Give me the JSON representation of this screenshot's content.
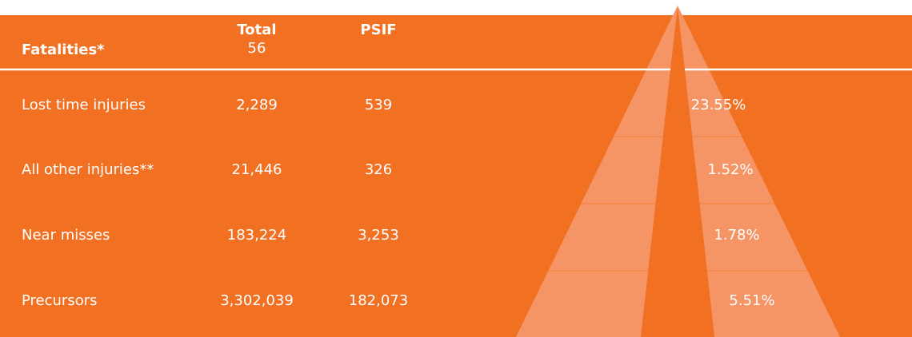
{
  "colors": {
    "background": "#f27022",
    "wedge": "#f59565",
    "divider": "#ffffff"
  },
  "header": {
    "label": "Fatalities*",
    "total_label": "Total",
    "total_value": "56",
    "psif_label": "PSIF"
  },
  "rows": [
    {
      "label": "Lost time injuries",
      "total": "2,289",
      "psif": "539",
      "percent": "23.55%"
    },
    {
      "label": "All other injuries**",
      "total": "21,446",
      "psif": "326",
      "percent": "1.52%"
    },
    {
      "label": "Near misses",
      "total": "183,224",
      "psif": "3,253",
      "percent": "1.78%"
    },
    {
      "label": "Precursors",
      "total": "3,302,039",
      "psif": "182,073",
      "percent": "5.51%"
    }
  ]
}
